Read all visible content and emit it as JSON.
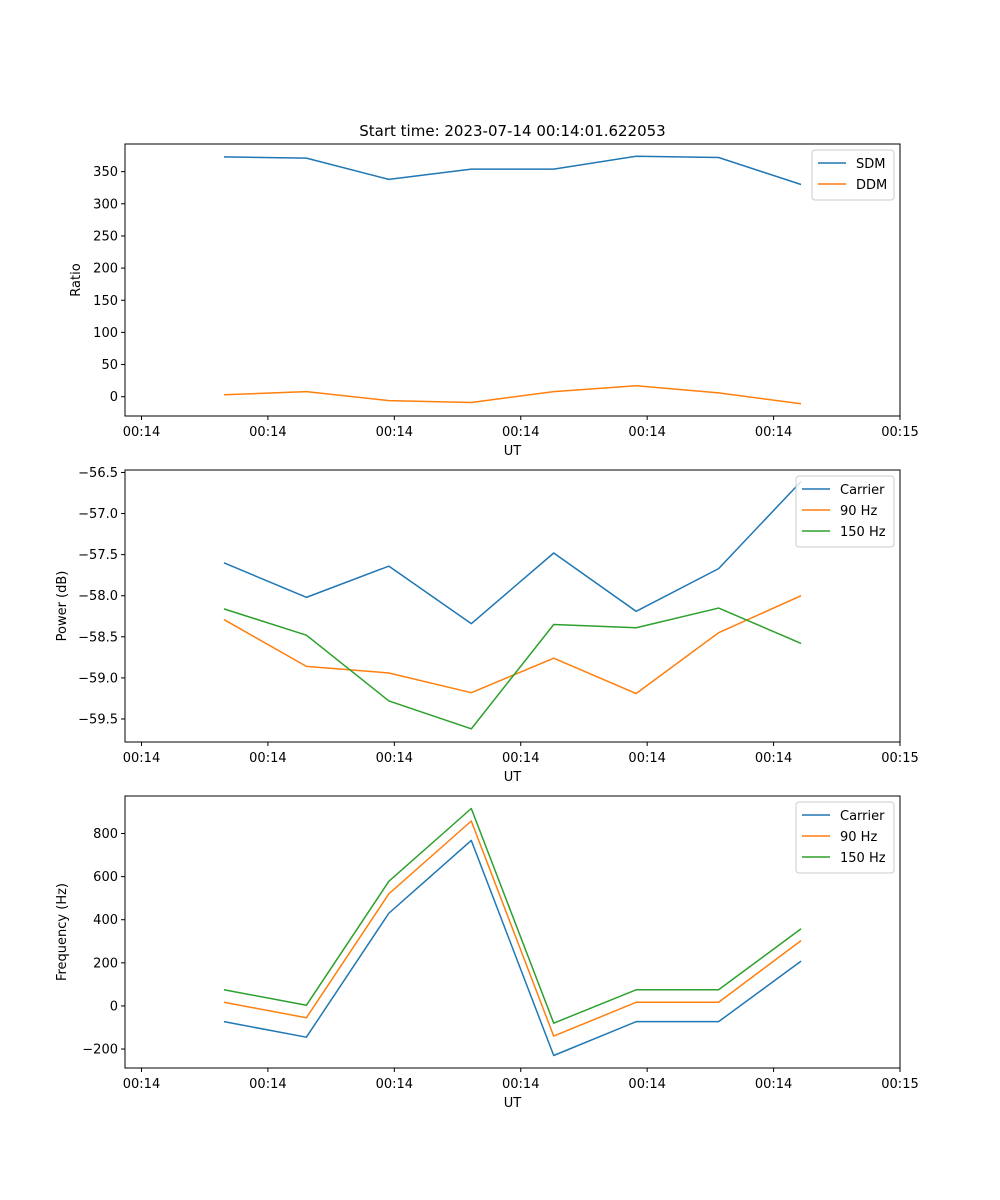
{
  "figure": {
    "title": "Start time: 2023-07-14 00:14:01.622053"
  },
  "chart_data": [
    {
      "type": "line",
      "title": "Start time: 2023-07-14 00:14:01.622053",
      "xlabel": "UT",
      "ylabel": "Ratio",
      "x": [
        1,
        2,
        3,
        4,
        5,
        6,
        7,
        8
      ],
      "xlim": [
        -0.2,
        9.2
      ],
      "x_ticks": [
        0,
        1.5333,
        3.0667,
        4.6,
        6.1333,
        7.6667,
        9.2
      ],
      "x_tick_labels": [
        "00:14",
        "00:14",
        "00:14",
        "00:14",
        "00:14",
        "00:14",
        "00:15"
      ],
      "ylim": [
        -30,
        393
      ],
      "y_ticks": [
        0,
        50,
        100,
        150,
        200,
        250,
        300,
        350
      ],
      "y_tick_labels": [
        "0",
        "50",
        "100",
        "150",
        "200",
        "250",
        "300",
        "350"
      ],
      "legend": "top-right",
      "series": [
        {
          "name": "SDM",
          "color": "#1f77b4",
          "values": [
            373,
            371,
            338,
            354,
            354,
            374,
            372,
            330
          ]
        },
        {
          "name": "DDM",
          "color": "#ff7f0e",
          "values": [
            3,
            8,
            -6,
            -9,
            8,
            17,
            6,
            -11
          ]
        }
      ]
    },
    {
      "type": "line",
      "title": "",
      "xlabel": "UT",
      "ylabel": "Power (dB)",
      "x": [
        1,
        2,
        3,
        4,
        5,
        6,
        7,
        8
      ],
      "xlim": [
        -0.2,
        9.2
      ],
      "x_ticks": [
        0,
        1.5333,
        3.0667,
        4.6,
        6.1333,
        7.6667,
        9.2
      ],
      "x_tick_labels": [
        "00:14",
        "00:14",
        "00:14",
        "00:14",
        "00:14",
        "00:14",
        "00:15"
      ],
      "ylim": [
        -59.78,
        -56.47
      ],
      "y_ticks": [
        -59.5,
        -59.0,
        -58.5,
        -58.0,
        -57.5,
        -57.0,
        -56.5
      ],
      "y_tick_labels": [
        "−59.5",
        "−59.0",
        "−58.5",
        "−58.0",
        "−57.5",
        "−57.0",
        "−56.5"
      ],
      "legend": "top-right",
      "series": [
        {
          "name": "Carrier",
          "color": "#1f77b4",
          "values": [
            -57.6,
            -58.02,
            -57.64,
            -58.34,
            -57.48,
            -58.19,
            -57.67,
            -56.61
          ]
        },
        {
          "name": "90 Hz",
          "color": "#ff7f0e",
          "values": [
            -58.29,
            -58.86,
            -58.94,
            -59.18,
            -58.76,
            -59.19,
            -58.45,
            -58.0
          ]
        },
        {
          "name": "150 Hz",
          "color": "#2ca02c",
          "values": [
            -58.16,
            -58.48,
            -59.28,
            -59.62,
            -58.35,
            -58.39,
            -58.15,
            -58.58
          ]
        }
      ]
    },
    {
      "type": "line",
      "title": "",
      "xlabel": "UT",
      "ylabel": "Frequency (Hz)",
      "x": [
        1,
        2,
        3,
        4,
        5,
        6,
        7,
        8
      ],
      "xlim": [
        -0.2,
        9.2
      ],
      "x_ticks": [
        0,
        1.5333,
        3.0667,
        4.6,
        6.1333,
        7.6667,
        9.2
      ],
      "x_tick_labels": [
        "00:14",
        "00:14",
        "00:14",
        "00:14",
        "00:14",
        "00:14",
        "00:15"
      ],
      "ylim": [
        -288,
        974
      ],
      "y_ticks": [
        -200,
        0,
        200,
        400,
        600,
        800
      ],
      "y_tick_labels": [
        "−200",
        "0",
        "200",
        "400",
        "600",
        "800"
      ],
      "legend": "top-right",
      "series": [
        {
          "name": "Carrier",
          "color": "#1f77b4",
          "values": [
            -73,
            -145,
            430,
            768,
            -230,
            -73,
            -73,
            208
          ]
        },
        {
          "name": "90 Hz",
          "color": "#ff7f0e",
          "values": [
            17,
            -55,
            520,
            858,
            -140,
            17,
            17,
            303
          ]
        },
        {
          "name": "150 Hz",
          "color": "#2ca02c",
          "values": [
            75,
            3,
            578,
            916,
            -80,
            75,
            75,
            358
          ]
        }
      ]
    }
  ]
}
